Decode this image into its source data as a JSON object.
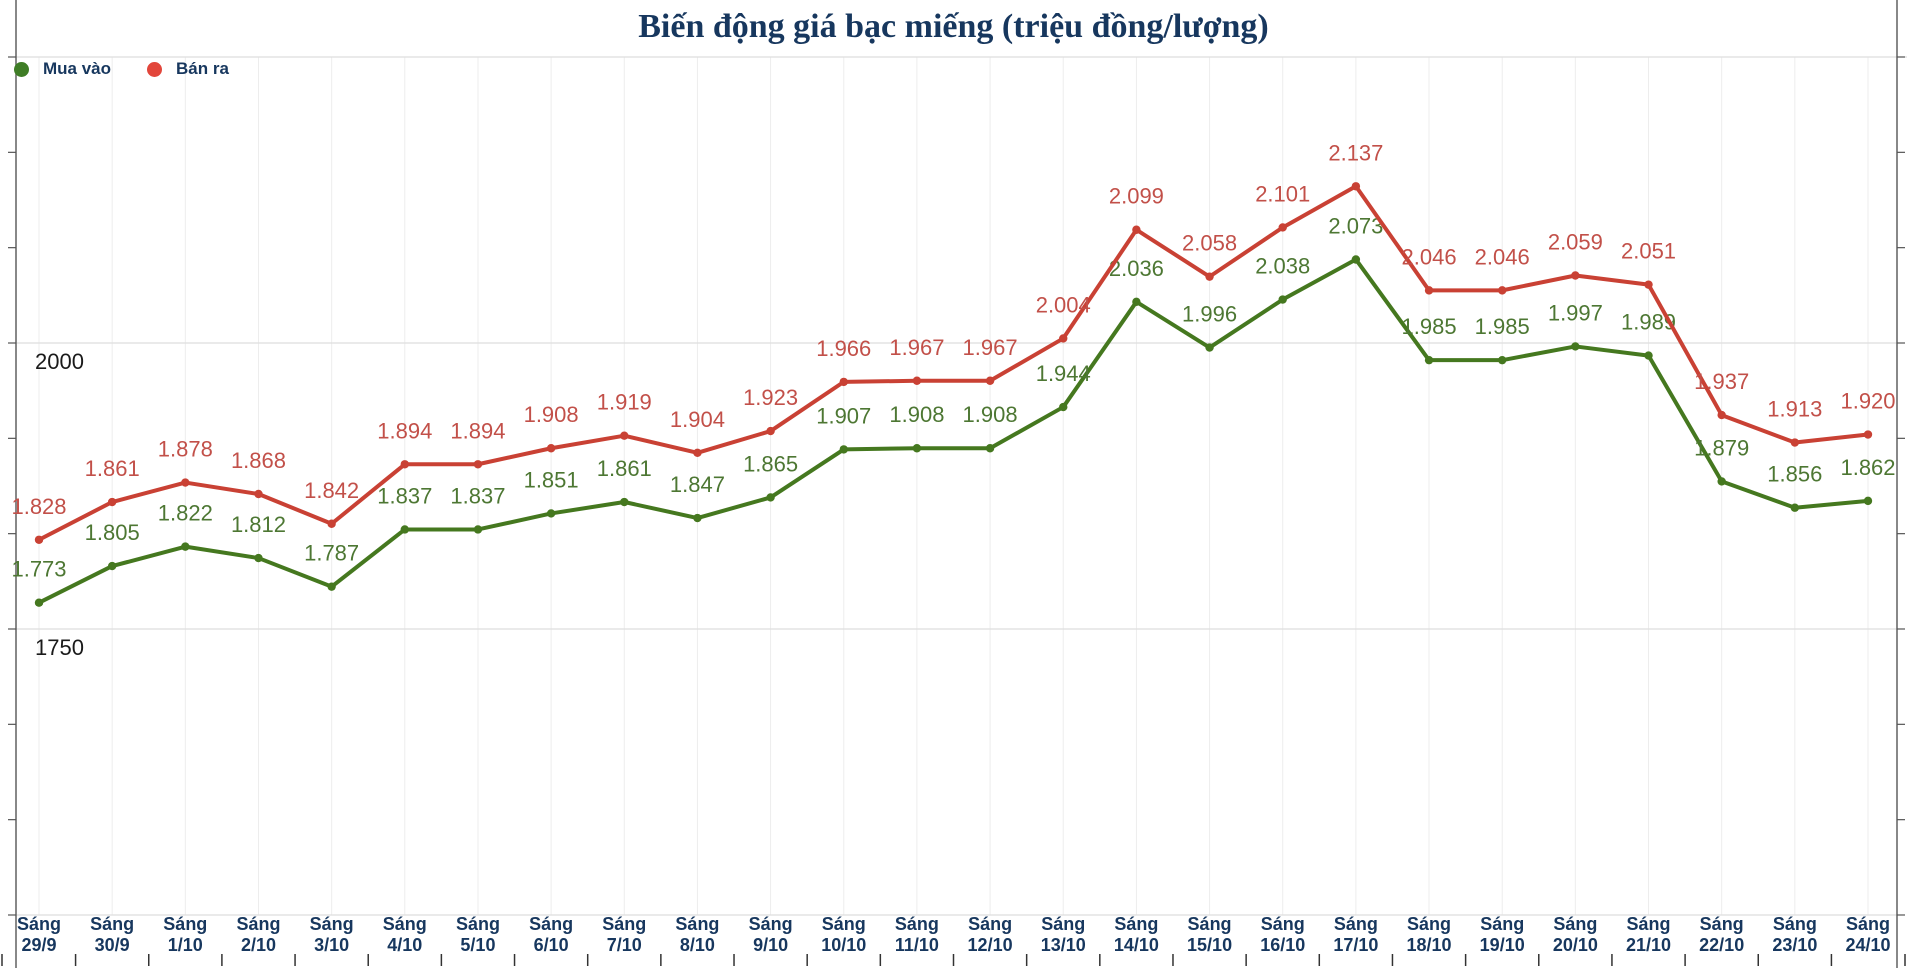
{
  "title": "Biến động giá bạc miếng (triệu đồng/lượng)",
  "legend": {
    "buy": {
      "label": "Mua vào",
      "color": "#3f7d26"
    },
    "sell": {
      "label": "Bán ra",
      "color": "#e2463b"
    }
  },
  "colors": {
    "title_text": "#17375e",
    "x_label_text": "#17375e",
    "y_label_text": "#1a1a1a",
    "grid_horizontal": "#dedede",
    "grid_vertical": "#ededed",
    "axis": "#555555"
  },
  "chart_data": {
    "type": "line",
    "title": "Biến động giá bạc miếng (triệu đồng/lượng)",
    "xlabel": "",
    "ylabel": "",
    "x_prefix": "Sáng",
    "categories": [
      "29/9",
      "30/9",
      "1/10",
      "2/10",
      "3/10",
      "4/10",
      "5/10",
      "6/10",
      "7/10",
      "8/10",
      "9/10",
      "10/10",
      "11/10",
      "12/10",
      "13/10",
      "14/10",
      "15/10",
      "16/10",
      "17/10",
      "18/10",
      "19/10",
      "20/10",
      "21/10",
      "22/10",
      "23/10",
      "24/10"
    ],
    "series": [
      {
        "name": "Mua vào",
        "color": "#45781f",
        "label_color": "#4d7733",
        "values": [
          1773,
          1805,
          1822,
          1812,
          1787,
          1837,
          1837,
          1851,
          1861,
          1847,
          1865,
          1907,
          1908,
          1908,
          1944,
          2036,
          1996,
          2038,
          2073,
          1985,
          1985,
          1997,
          1989,
          1879,
          1856,
          1862
        ],
        "labels": [
          "1.773",
          "1.805",
          "1.822",
          "1.812",
          "1.787",
          "1.837",
          "1.837",
          "1.851",
          "1.861",
          "1.847",
          "1.865",
          "1.907",
          "1.908",
          "1.908",
          "1.944",
          "2.036",
          "1.996",
          "2.038",
          "2.073",
          "1.985",
          "1.985",
          "1.997",
          "1.989",
          "1.879",
          "1.856",
          "1.862"
        ]
      },
      {
        "name": "Bán ra",
        "color": "#c94134",
        "label_color": "#c25049",
        "values": [
          1828,
          1861,
          1878,
          1868,
          1842,
          1894,
          1894,
          1908,
          1919,
          1904,
          1923,
          1966,
          1967,
          1967,
          2004,
          2099,
          2058,
          2101,
          2137,
          2046,
          2046,
          2059,
          2051,
          1937,
          1913,
          1920
        ],
        "labels": [
          "1.828",
          "1.861",
          "1.878",
          "1.868",
          "1.842",
          "1.894",
          "1.894",
          "1.908",
          "1.919",
          "1.904",
          "1.923",
          "1.966",
          "1.967",
          "1.967",
          "2.004",
          "2.099",
          "2.058",
          "2.101",
          "2.137",
          "2.046",
          "2.046",
          "2.059",
          "2.051",
          "1.937",
          "1.913",
          "1.920"
        ]
      }
    ],
    "ylim": [
      1500,
      2250
    ],
    "gridline_values": [
      1500,
      1750,
      2000,
      2250
    ],
    "y_tick_labels_shown": [
      "1750",
      "2000"
    ],
    "grid": true,
    "legend_position": "top-left"
  }
}
